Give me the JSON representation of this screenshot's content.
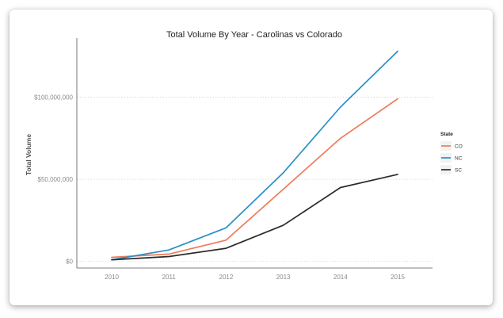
{
  "chart_data": {
    "type": "line",
    "title": "Total Volume By Year - Carolinas vs Colorado",
    "xlabel": "",
    "ylabel": "Total Volume",
    "x": [
      "2010",
      "2011",
      "2012",
      "2013",
      "2014",
      "2015"
    ],
    "y_ticks": [
      0,
      50000000,
      100000000
    ],
    "y_tick_labels": [
      "$0",
      "$50,000,000",
      "$100,000,000"
    ],
    "ylim": [
      -4000000,
      136000000
    ],
    "grid": "horizontal dotted",
    "legend": {
      "title": "State",
      "position": "right"
    },
    "series": [
      {
        "name": "CO",
        "color": "#f07a5b",
        "values": [
          2500000,
          4500000,
          13000000,
          44000000,
          75000000,
          99000000
        ]
      },
      {
        "name": "NC",
        "color": "#2a8fc6",
        "values": [
          1000000,
          7000000,
          20500000,
          54000000,
          94000000,
          128000000
        ]
      },
      {
        "name": "SC",
        "color": "#2b2b2b",
        "values": [
          1000000,
          3000000,
          8000000,
          22000000,
          45000000,
          53000000
        ]
      }
    ]
  }
}
